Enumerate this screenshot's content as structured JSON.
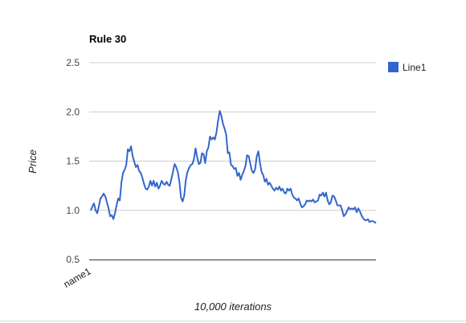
{
  "chart_data": {
    "type": "line",
    "title": "Rule 30",
    "xlabel": "10,000 iterations",
    "ylabel": "Price",
    "x_tick_labels": [
      "name1"
    ],
    "ylim": [
      0.5,
      2.5
    ],
    "y_ticks": [
      0.5,
      1.0,
      1.5,
      2.0,
      2.5
    ],
    "y_tick_labels": [
      "0.5",
      "1.0",
      "1.5",
      "2.0",
      "2.5"
    ],
    "grid": true,
    "legend_position": "right",
    "series": [
      {
        "name": "Line1",
        "color": "#3366cc",
        "values": [
          1.0,
          1.04,
          1.07,
          1.0,
          0.97,
          1.04,
          1.12,
          1.14,
          1.17,
          1.14,
          1.08,
          1.02,
          0.94,
          0.95,
          0.91,
          0.97,
          1.05,
          1.12,
          1.1,
          1.28,
          1.38,
          1.41,
          1.46,
          1.62,
          1.6,
          1.65,
          1.55,
          1.49,
          1.44,
          1.46,
          1.4,
          1.38,
          1.33,
          1.27,
          1.22,
          1.21,
          1.24,
          1.3,
          1.25,
          1.3,
          1.24,
          1.28,
          1.22,
          1.25,
          1.3,
          1.27,
          1.26,
          1.29,
          1.26,
          1.25,
          1.32,
          1.39,
          1.47,
          1.44,
          1.39,
          1.29,
          1.13,
          1.09,
          1.15,
          1.31,
          1.39,
          1.43,
          1.46,
          1.47,
          1.52,
          1.63,
          1.54,
          1.47,
          1.48,
          1.58,
          1.57,
          1.48,
          1.6,
          1.64,
          1.75,
          1.72,
          1.74,
          1.72,
          1.79,
          1.91,
          2.01,
          1.96,
          1.88,
          1.83,
          1.77,
          1.58,
          1.59,
          1.46,
          1.45,
          1.42,
          1.43,
          1.35,
          1.38,
          1.31,
          1.36,
          1.4,
          1.45,
          1.56,
          1.55,
          1.47,
          1.4,
          1.38,
          1.42,
          1.55,
          1.6,
          1.48,
          1.39,
          1.36,
          1.29,
          1.32,
          1.26,
          1.28,
          1.25,
          1.22,
          1.2,
          1.23,
          1.21,
          1.24,
          1.2,
          1.22,
          1.18,
          1.17,
          1.22,
          1.2,
          1.22,
          1.16,
          1.13,
          1.12,
          1.1,
          1.12,
          1.07,
          1.03,
          1.04,
          1.06,
          1.1,
          1.09,
          1.1,
          1.09,
          1.11,
          1.08,
          1.09,
          1.1,
          1.16,
          1.15,
          1.18,
          1.14,
          1.18,
          1.1,
          1.06,
          1.08,
          1.15,
          1.14,
          1.1,
          1.05,
          1.05,
          1.05,
          1.0,
          0.94,
          0.96,
          0.99,
          1.03,
          1.01,
          1.02,
          1.01,
          1.03,
          0.98,
          1.02,
          0.99,
          0.95,
          0.92,
          0.9,
          0.9,
          0.91,
          0.88,
          0.89,
          0.89,
          0.88,
          0.87
        ]
      }
    ]
  }
}
